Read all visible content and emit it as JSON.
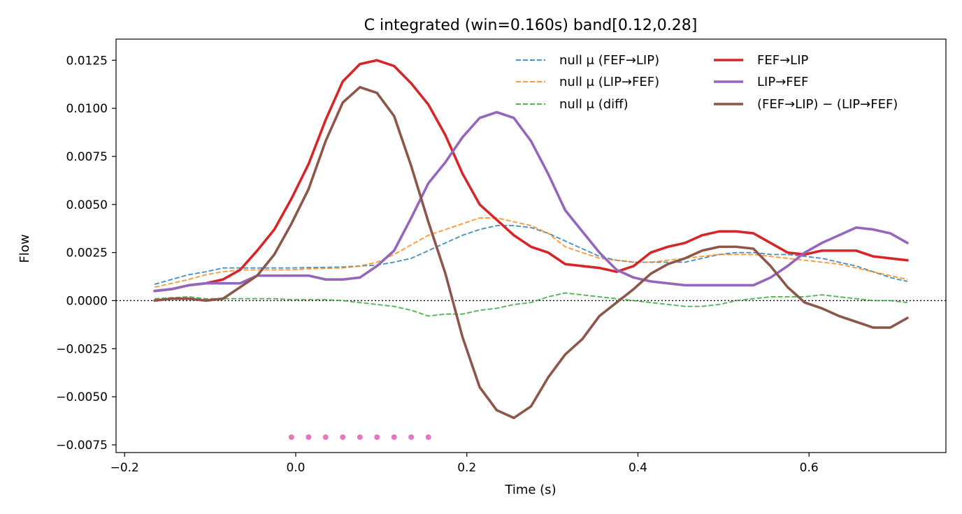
{
  "chart_data": {
    "type": "line",
    "title": "C integrated (win=0.160s)   band[0.12,0.28]",
    "xlabel": "Time (s)",
    "ylabel": "Flow",
    "xlim": [
      -0.21,
      0.76
    ],
    "ylim": [
      -0.0079,
      0.0136
    ],
    "xticks": [
      -0.2,
      0.0,
      0.2,
      0.4,
      0.6
    ],
    "xtick_labels": [
      "−0.2",
      "0.0",
      "0.2",
      "0.4",
      "0.6"
    ],
    "yticks": [
      -0.0075,
      -0.005,
      -0.0025,
      0.0,
      0.0025,
      0.005,
      0.0075,
      0.01,
      0.0125
    ],
    "ytick_labels": [
      "−0.0075",
      "−0.0050",
      "−0.0025",
      "0.0000",
      "0.0025",
      "0.0050",
      "0.0075",
      "0.0100",
      "0.0125"
    ],
    "zero_line": true,
    "legend_position": "top-right",
    "x": [
      -0.165,
      -0.145,
      -0.125,
      -0.105,
      -0.085,
      -0.065,
      -0.045,
      -0.025,
      -0.005,
      0.015,
      0.035,
      0.055,
      0.075,
      0.095,
      0.115,
      0.135,
      0.155,
      0.175,
      0.195,
      0.215,
      0.235,
      0.255,
      0.275,
      0.295,
      0.315,
      0.335,
      0.355,
      0.375,
      0.395,
      0.415,
      0.435,
      0.455,
      0.475,
      0.495,
      0.515,
      0.535,
      0.555,
      0.575,
      0.595,
      0.615,
      0.635,
      0.655,
      0.675,
      0.695,
      0.715
    ],
    "series": [
      {
        "name": "null μ (FEF→LIP)",
        "color": "#1f77b4",
        "style": "dashed",
        "values": [
          0.00085,
          0.0011,
          0.00135,
          0.0015,
          0.0017,
          0.0017,
          0.0017,
          0.0017,
          0.0017,
          0.00172,
          0.00173,
          0.00175,
          0.0018,
          0.00185,
          0.002,
          0.0022,
          0.0026,
          0.003,
          0.0034,
          0.0037,
          0.0039,
          0.0039,
          0.0038,
          0.0035,
          0.0031,
          0.0027,
          0.0023,
          0.0021,
          0.002,
          0.002,
          0.002,
          0.002,
          0.0022,
          0.0024,
          0.0025,
          0.0025,
          0.0024,
          0.0024,
          0.0023,
          0.0022,
          0.002,
          0.0018,
          0.0015,
          0.0012,
          0.001
        ]
      },
      {
        "name": "null μ (LIP→FEF)",
        "color": "#ff7f0e",
        "style": "dashed",
        "values": [
          0.0007,
          0.0009,
          0.0011,
          0.00135,
          0.0015,
          0.0016,
          0.0016,
          0.0016,
          0.0016,
          0.00165,
          0.00168,
          0.0017,
          0.0018,
          0.002,
          0.0024,
          0.0029,
          0.0034,
          0.0037,
          0.004,
          0.0043,
          0.0043,
          0.0041,
          0.0039,
          0.0035,
          0.0028,
          0.0025,
          0.0022,
          0.0021,
          0.002,
          0.002,
          0.0021,
          0.0022,
          0.0023,
          0.0024,
          0.0024,
          0.0024,
          0.0023,
          0.0022,
          0.0021,
          0.002,
          0.0019,
          0.0017,
          0.0015,
          0.0013,
          0.0011
        ]
      },
      {
        "name": "null μ (diff)",
        "color": "#2ca02c",
        "style": "dashed",
        "values": [
          0.0001,
          0.00015,
          0.0002,
          0.0001,
          0.0001,
          0.0001,
          0.0001,
          0.0001,
          5e-05,
          5e-05,
          5e-05,
          0.0,
          -0.0001,
          -0.0002,
          -0.0003,
          -0.0005,
          -0.0008,
          -0.0007,
          -0.0007,
          -0.0005,
          -0.0004,
          -0.0002,
          -0.0001,
          0.0002,
          0.0004,
          0.0003,
          0.0002,
          0.0001,
          0.0,
          -0.0001,
          -0.0002,
          -0.0003,
          -0.0003,
          -0.0002,
          0.0,
          0.0001,
          0.0002,
          0.0002,
          0.0002,
          0.0003,
          0.0002,
          0.0001,
          0.0,
          0.0,
          -0.0001
        ]
      },
      {
        "name": "FEF→LIP",
        "color": "#d62728",
        "style": "solid",
        "values": [
          0.0005,
          0.0006,
          0.0008,
          0.0009,
          0.0011,
          0.0016,
          0.0026,
          0.0037,
          0.0053,
          0.0071,
          0.0094,
          0.0114,
          0.0123,
          0.0125,
          0.0122,
          0.0113,
          0.0102,
          0.0086,
          0.0066,
          0.005,
          0.0042,
          0.0034,
          0.0028,
          0.0025,
          0.0019,
          0.0018,
          0.0017,
          0.0015,
          0.0018,
          0.0025,
          0.0028,
          0.003,
          0.0034,
          0.0036,
          0.0036,
          0.0035,
          0.003,
          0.0025,
          0.0024,
          0.0026,
          0.0026,
          0.0026,
          0.0023,
          0.0022,
          0.0021
        ]
      },
      {
        "name": "LIP→FEF",
        "color": "#9467bd",
        "style": "solid",
        "values": [
          0.0005,
          0.0006,
          0.0008,
          0.0009,
          0.0009,
          0.0009,
          0.0013,
          0.0013,
          0.0013,
          0.0013,
          0.0011,
          0.0011,
          0.0012,
          0.0018,
          0.0026,
          0.0043,
          0.0061,
          0.0072,
          0.0085,
          0.0095,
          0.0098,
          0.0095,
          0.0083,
          0.0066,
          0.0047,
          0.0036,
          0.0025,
          0.0016,
          0.0012,
          0.001,
          0.0009,
          0.0008,
          0.0008,
          0.0008,
          0.0008,
          0.0008,
          0.0012,
          0.0018,
          0.0025,
          0.003,
          0.0034,
          0.0038,
          0.0037,
          0.0035,
          0.003
        ]
      },
      {
        "name": "(FEF→LIP) − (LIP→FEF)",
        "color": "#8c564b",
        "style": "solid",
        "values": [
          0.0,
          0.0001,
          0.0001,
          0.0,
          0.0001,
          0.0007,
          0.0013,
          0.0024,
          0.004,
          0.0058,
          0.0083,
          0.0103,
          0.0111,
          0.0108,
          0.0096,
          0.007,
          0.0041,
          0.0014,
          -0.0019,
          -0.0045,
          -0.0057,
          -0.0061,
          -0.0055,
          -0.004,
          -0.0028,
          -0.002,
          -0.0008,
          -0.0001,
          0.0006,
          0.0014,
          0.0019,
          0.0022,
          0.0026,
          0.0028,
          0.0028,
          0.0027,
          0.0018,
          0.0007,
          -0.0001,
          -0.0004,
          -0.0008,
          -0.0011,
          -0.0014,
          -0.0014,
          -0.0009
        ]
      }
    ],
    "significance_markers": {
      "color": "#e377c2",
      "y": -0.0071,
      "x": [
        -0.005,
        0.015,
        0.035,
        0.055,
        0.075,
        0.095,
        0.115,
        0.135,
        0.155
      ]
    }
  }
}
